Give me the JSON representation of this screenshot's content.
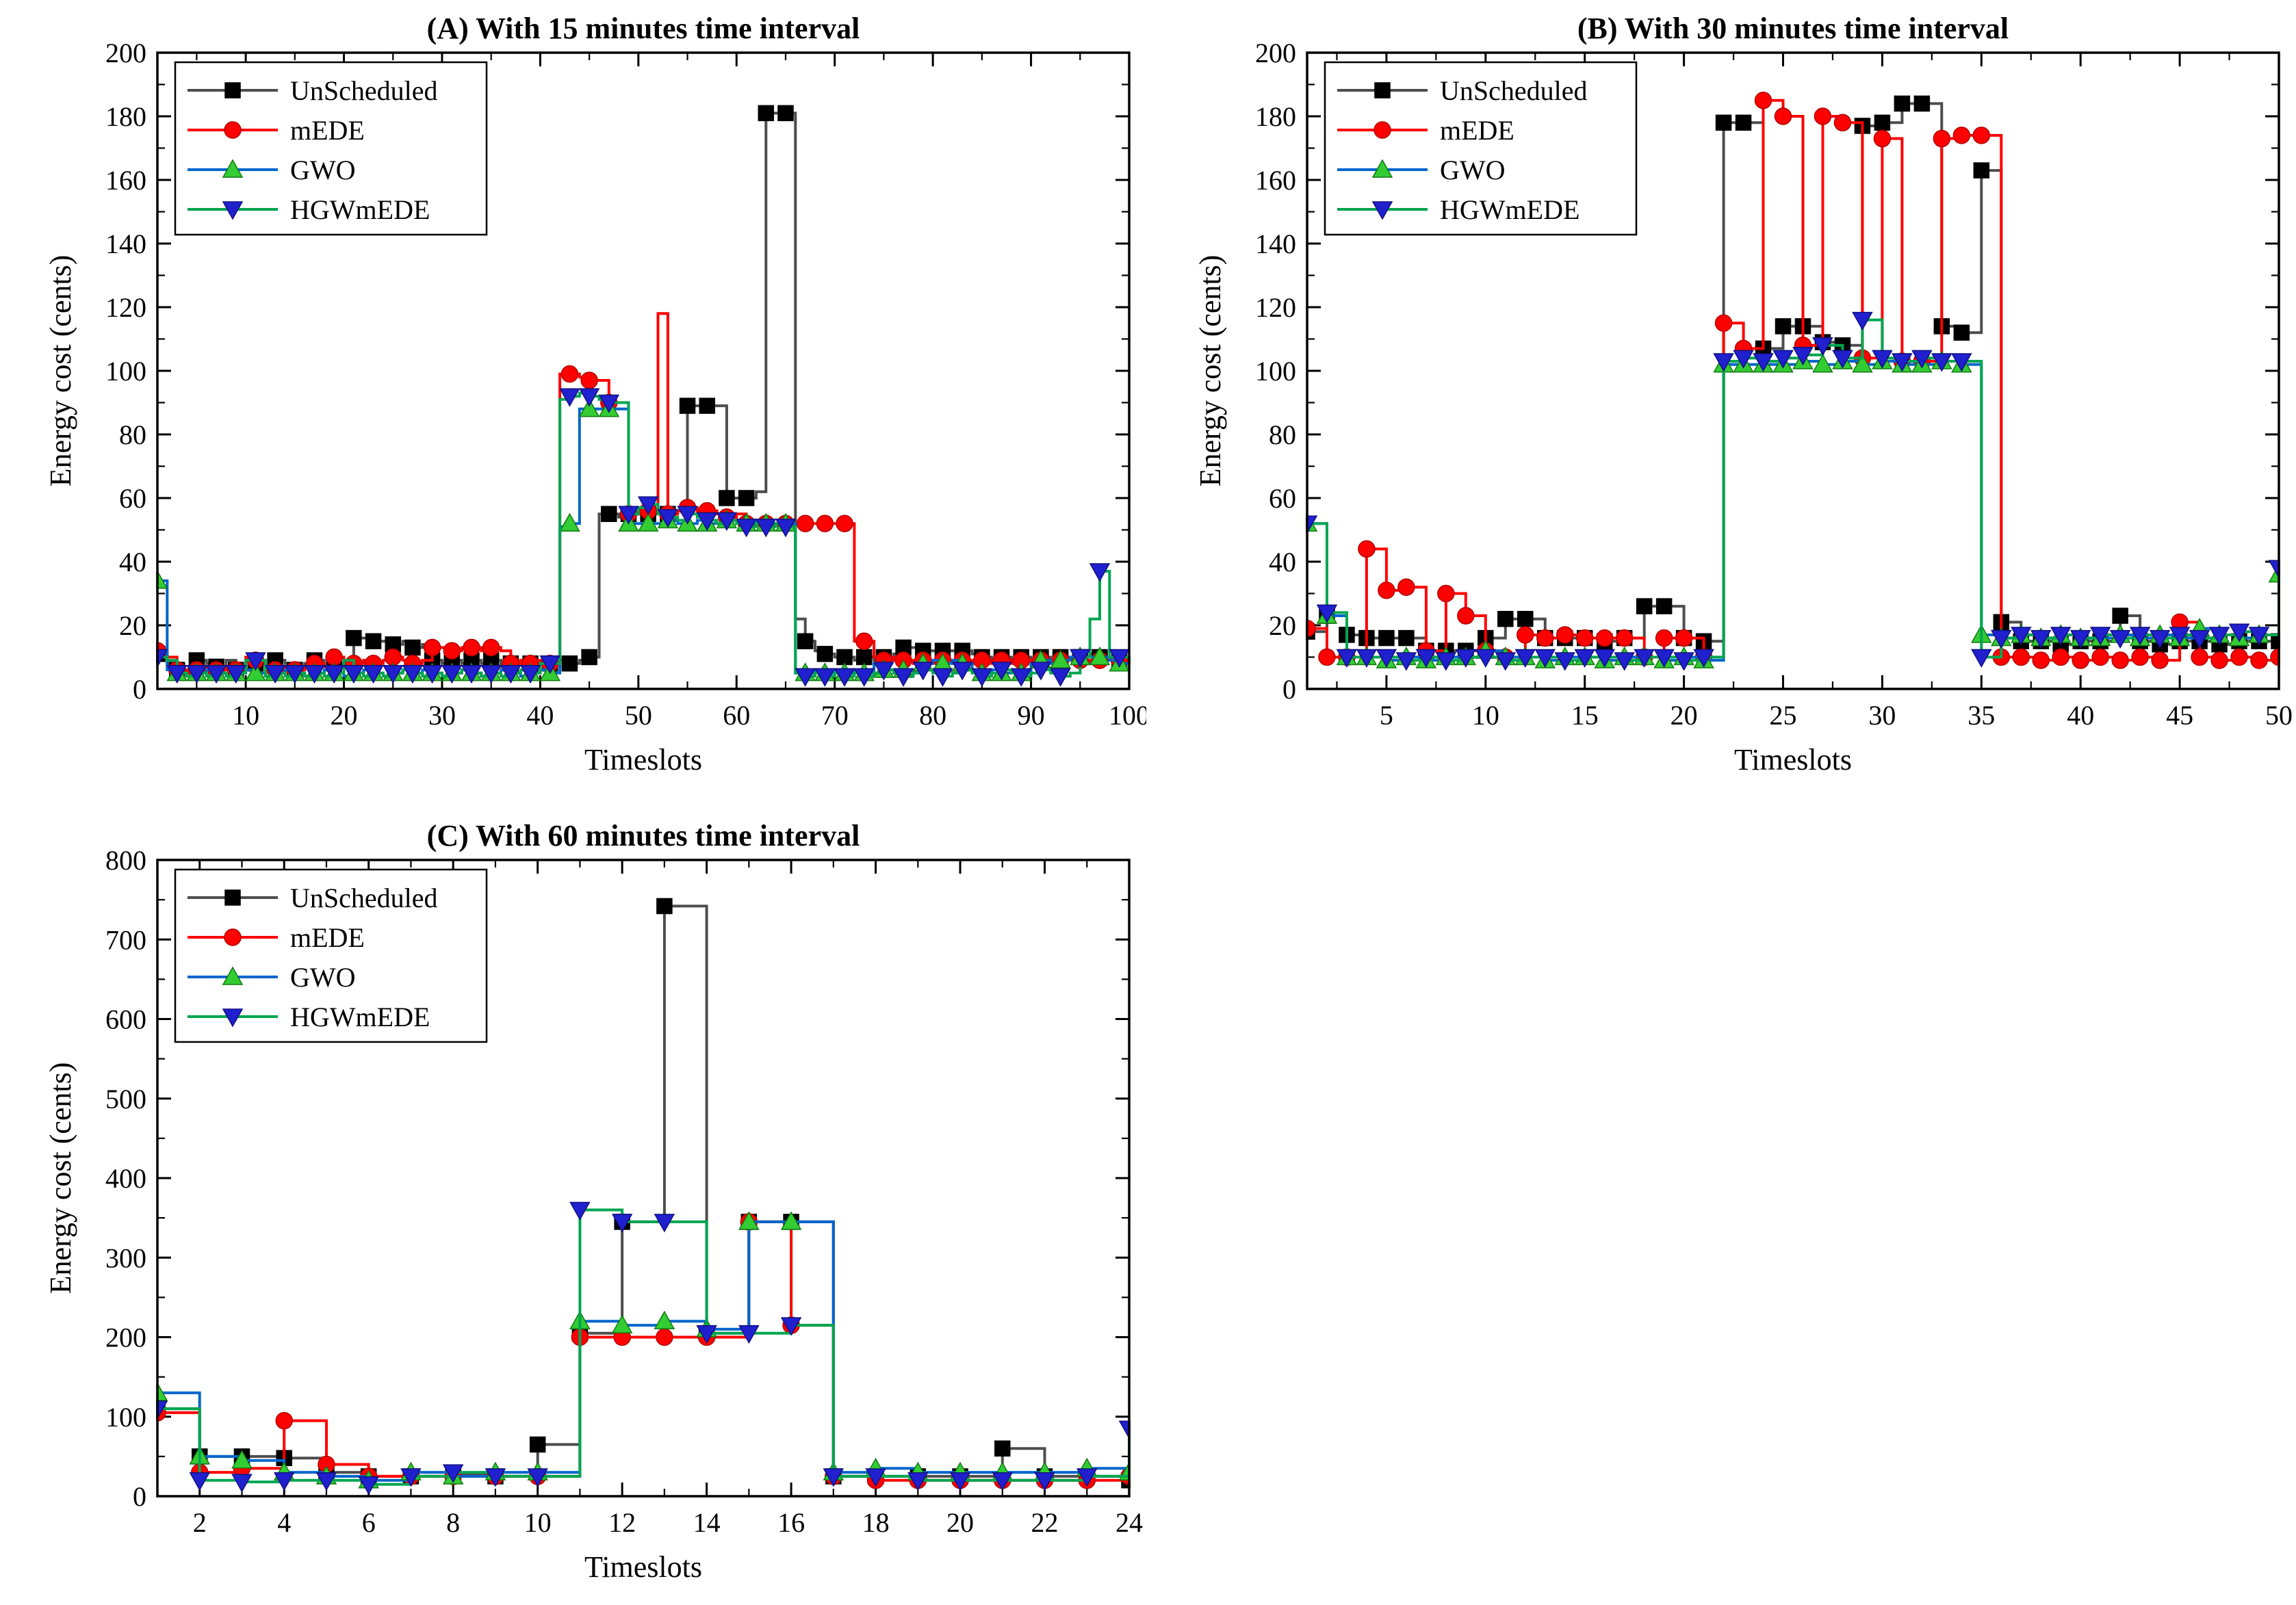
{
  "figure": {
    "description": "Energy cost comparison for UnScheduled, mEDE, GWO and HGWmEDE schedules at three time-interval resolutions"
  },
  "chart_data": [
    {
      "id": "A",
      "type": "line",
      "step": true,
      "title": "(A)  With 15 minutes time interval",
      "xlabel": "Timeslots",
      "ylabel": "Energy cost (cents)",
      "xlim": [
        1,
        100
      ],
      "ylim": [
        0,
        200
      ],
      "x_ticks": [
        10,
        20,
        30,
        40,
        50,
        60,
        70,
        80,
        90,
        100
      ],
      "y_ticks": [
        0,
        20,
        40,
        60,
        80,
        100,
        120,
        140,
        160,
        180,
        200
      ],
      "legend_position": "top-left",
      "grid": false,
      "marker_every": 2,
      "series": [
        {
          "name": "UnScheduled",
          "line_color": "#4d4d4d",
          "marker": "square",
          "marker_color": "#000000",
          "marker_edge": "#000000",
          "values": [
            11,
            8,
            6,
            5,
            9,
            8,
            7,
            9,
            6,
            9,
            8,
            7,
            9,
            8,
            6,
            8,
            9,
            7,
            8,
            9,
            16,
            16,
            15,
            15,
            14,
            15,
            13,
            14,
            9,
            8,
            9,
            8,
            9,
            8,
            9,
            7,
            8,
            9,
            8,
            9,
            8,
            9,
            8,
            9,
            10,
            55,
            55,
            54,
            55,
            56,
            55,
            56,
            55,
            56,
            89,
            89,
            89,
            89,
            60,
            60,
            60,
            62,
            181,
            181,
            181,
            22,
            15,
            12,
            11,
            10,
            10,
            9,
            10,
            9,
            10,
            11,
            13,
            13,
            12,
            12,
            12,
            12,
            12,
            11,
            10,
            9,
            10,
            9,
            10,
            9,
            10,
            9,
            10,
            9,
            10,
            11,
            10,
            9,
            9,
            8
          ]
        },
        {
          "name": "mEDE",
          "line_color": "#ff0000",
          "marker": "circle",
          "marker_color": "#ff0000",
          "marker_edge": "#b30000",
          "values": [
            12,
            10,
            6,
            5,
            6,
            7,
            6,
            7,
            6,
            10,
            9,
            7,
            6,
            7,
            6,
            7,
            8,
            7,
            10,
            9,
            8,
            9,
            8,
            9,
            10,
            9,
            8,
            9,
            13,
            13,
            12,
            13,
            13,
            12,
            13,
            12,
            8,
            9,
            8,
            9,
            8,
            99,
            99,
            98,
            97,
            97,
            90,
            90,
            55,
            55,
            56,
            118,
            55,
            56,
            57,
            55,
            56,
            55,
            54,
            55,
            52,
            52,
            52,
            52,
            52,
            52,
            52,
            52,
            52,
            52,
            52,
            15,
            15,
            10,
            9,
            10,
            9,
            8,
            9,
            8,
            9,
            8,
            9,
            8,
            9,
            8,
            9,
            8,
            9,
            8,
            9,
            8,
            9,
            10,
            9,
            8,
            9,
            10,
            9,
            8
          ]
        },
        {
          "name": "GWO",
          "line_color": "#0066cc",
          "marker": "triangle-up",
          "marker_color": "#33cc33",
          "marker_edge": "#0f7a0f",
          "values": [
            34,
            6,
            5,
            4,
            5,
            6,
            5,
            4,
            5,
            6,
            5,
            4,
            5,
            6,
            5,
            4,
            5,
            6,
            5,
            4,
            5,
            6,
            5,
            4,
            5,
            6,
            5,
            6,
            5,
            4,
            5,
            6,
            5,
            4,
            5,
            6,
            5,
            4,
            5,
            6,
            5,
            51,
            52,
            88,
            88,
            88,
            88,
            88,
            52,
            52,
            52,
            52,
            53,
            52,
            52,
            53,
            52,
            52,
            53,
            52,
            52,
            53,
            52,
            52,
            52,
            5,
            5,
            6,
            5,
            6,
            5,
            6,
            5,
            8,
            6,
            5,
            6,
            5,
            8,
            9,
            8,
            9,
            8,
            6,
            5,
            6,
            5,
            6,
            5,
            8,
            9,
            8,
            9,
            10,
            10,
            10,
            10,
            9,
            8,
            8
          ]
        },
        {
          "name": "HGWmEDE",
          "line_color": "#00a550",
          "marker": "triangle-down",
          "marker_color": "#2020cf",
          "marker_edge": "#101080",
          "values": [
            10,
            9,
            5,
            4,
            5,
            4,
            5,
            4,
            5,
            9,
            9,
            4,
            5,
            4,
            5,
            4,
            5,
            4,
            5,
            9,
            5,
            4,
            5,
            4,
            5,
            6,
            5,
            4,
            5,
            4,
            5,
            6,
            5,
            4,
            5,
            4,
            5,
            6,
            5,
            8,
            8,
            91,
            92,
            93,
            92,
            91,
            90,
            90,
            55,
            57,
            58,
            55,
            54,
            53,
            55,
            54,
            53,
            52,
            53,
            52,
            51,
            52,
            51,
            52,
            51,
            5,
            4,
            5,
            4,
            5,
            4,
            5,
            4,
            5,
            6,
            5,
            4,
            5,
            6,
            5,
            4,
            5,
            6,
            5,
            4,
            5,
            6,
            5,
            4,
            5,
            6,
            5,
            4,
            5,
            10,
            22,
            37,
            10,
            10,
            9
          ]
        }
      ]
    },
    {
      "id": "B",
      "type": "line",
      "step": true,
      "title": "(B) With 30 minutes time interval",
      "xlabel": "Timeslots",
      "ylabel": "Energy cost (cents)",
      "xlim": [
        1,
        50
      ],
      "ylim": [
        0,
        200
      ],
      "x_ticks": [
        5,
        10,
        15,
        20,
        25,
        30,
        35,
        40,
        45,
        50
      ],
      "y_ticks": [
        0,
        20,
        40,
        60,
        80,
        100,
        120,
        140,
        160,
        180,
        200
      ],
      "legend_position": "top-left",
      "grid": false,
      "marker_every": 1,
      "series": [
        {
          "name": "UnScheduled",
          "line_color": "#4d4d4d",
          "marker": "square",
          "marker_color": "#000000",
          "marker_edge": "#000000",
          "values": [
            18,
            23,
            17,
            16,
            16,
            16,
            12,
            12,
            12,
            16,
            22,
            22,
            16,
            16,
            16,
            15,
            16,
            26,
            26,
            16,
            15,
            178,
            178,
            107,
            114,
            114,
            109,
            108,
            177,
            178,
            184,
            184,
            114,
            112,
            163,
            21,
            15,
            15,
            14,
            15,
            15,
            23,
            15,
            14,
            15,
            15,
            14,
            15,
            15,
            15
          ]
        },
        {
          "name": "mEDE",
          "line_color": "#ff0000",
          "marker": "circle",
          "marker_color": "#ff0000",
          "marker_edge": "#b30000",
          "values": [
            19,
            10,
            10,
            44,
            31,
            32,
            12,
            30,
            23,
            12,
            10,
            17,
            16,
            17,
            16,
            16,
            16,
            10,
            16,
            16,
            10,
            115,
            107,
            185,
            180,
            108,
            180,
            178,
            104,
            173,
            103,
            103,
            173,
            174,
            174,
            10,
            10,
            9,
            10,
            9,
            10,
            9,
            10,
            9,
            21,
            10,
            9,
            10,
            9,
            10
          ]
        },
        {
          "name": "GWO",
          "line_color": "#0066cc",
          "marker": "triangle-up",
          "marker_color": "#33cc33",
          "marker_edge": "#0f7a0f",
          "values": [
            52,
            23,
            10,
            10,
            9,
            10,
            9,
            10,
            10,
            12,
            10,
            10,
            9,
            10,
            10,
            9,
            10,
            10,
            9,
            10,
            9,
            102,
            102,
            102,
            102,
            103,
            102,
            103,
            102,
            103,
            102,
            102,
            103,
            102,
            17,
            16,
            17,
            16,
            17,
            16,
            16,
            17,
            16,
            17,
            16,
            19,
            17,
            16,
            17,
            36
          ]
        },
        {
          "name": "HGWmEDE",
          "line_color": "#00a550",
          "marker": "triangle-down",
          "marker_color": "#2020cf",
          "marker_edge": "#101080",
          "values": [
            52,
            24,
            10,
            10,
            10,
            9,
            10,
            9,
            10,
            10,
            9,
            10,
            10,
            9,
            10,
            10,
            9,
            10,
            10,
            9,
            10,
            103,
            104,
            103,
            104,
            105,
            108,
            104,
            116,
            104,
            103,
            104,
            103,
            103,
            10,
            16,
            17,
            16,
            17,
            16,
            17,
            16,
            17,
            16,
            17,
            16,
            17,
            18,
            17,
            38
          ]
        }
      ]
    },
    {
      "id": "C",
      "type": "line",
      "step": true,
      "title": "(C)  With 60 minutes time interval",
      "xlabel": "Timeslots",
      "ylabel": "Energy cost (cents)",
      "xlim": [
        1,
        24
      ],
      "ylim": [
        0,
        800
      ],
      "x_ticks": [
        2,
        4,
        6,
        8,
        10,
        12,
        14,
        16,
        18,
        20,
        22,
        24
      ],
      "y_ticks": [
        0,
        100,
        200,
        300,
        400,
        500,
        600,
        700,
        800
      ],
      "legend_position": "top-left",
      "grid": false,
      "marker_every": 1,
      "series": [
        {
          "name": "UnScheduled",
          "line_color": "#4d4d4d",
          "marker": "square",
          "marker_color": "#000000",
          "marker_edge": "#000000",
          "values": [
            110,
            50,
            50,
            48,
            30,
            25,
            25,
            28,
            25,
            65,
            205,
            345,
            742,
            205,
            345,
            345,
            25,
            25,
            25,
            25,
            60,
            25,
            25,
            20
          ]
        },
        {
          "name": "mEDE",
          "line_color": "#ff0000",
          "marker": "circle",
          "marker_color": "#ff0000",
          "marker_edge": "#b30000",
          "values": [
            105,
            30,
            35,
            95,
            40,
            25,
            25,
            25,
            25,
            25,
            200,
            200,
            200,
            200,
            345,
            215,
            25,
            20,
            20,
            20,
            20,
            20,
            20,
            25
          ]
        },
        {
          "name": "GWO",
          "line_color": "#0066cc",
          "marker": "triangle-up",
          "marker_color": "#33cc33",
          "marker_edge": "#0f7a0f",
          "values": [
            130,
            50,
            45,
            30,
            25,
            20,
            30,
            25,
            30,
            30,
            220,
            215,
            220,
            210,
            345,
            345,
            30,
            35,
            30,
            30,
            30,
            30,
            35,
            30
          ]
        },
        {
          "name": "HGWmEDE",
          "line_color": "#00a550",
          "marker": "triangle-down",
          "marker_color": "#2020cf",
          "marker_edge": "#101080",
          "values": [
            110,
            20,
            18,
            20,
            20,
            15,
            25,
            30,
            25,
            25,
            360,
            345,
            345,
            205,
            205,
            215,
            25,
            25,
            20,
            20,
            20,
            20,
            25,
            85
          ]
        }
      ]
    }
  ]
}
